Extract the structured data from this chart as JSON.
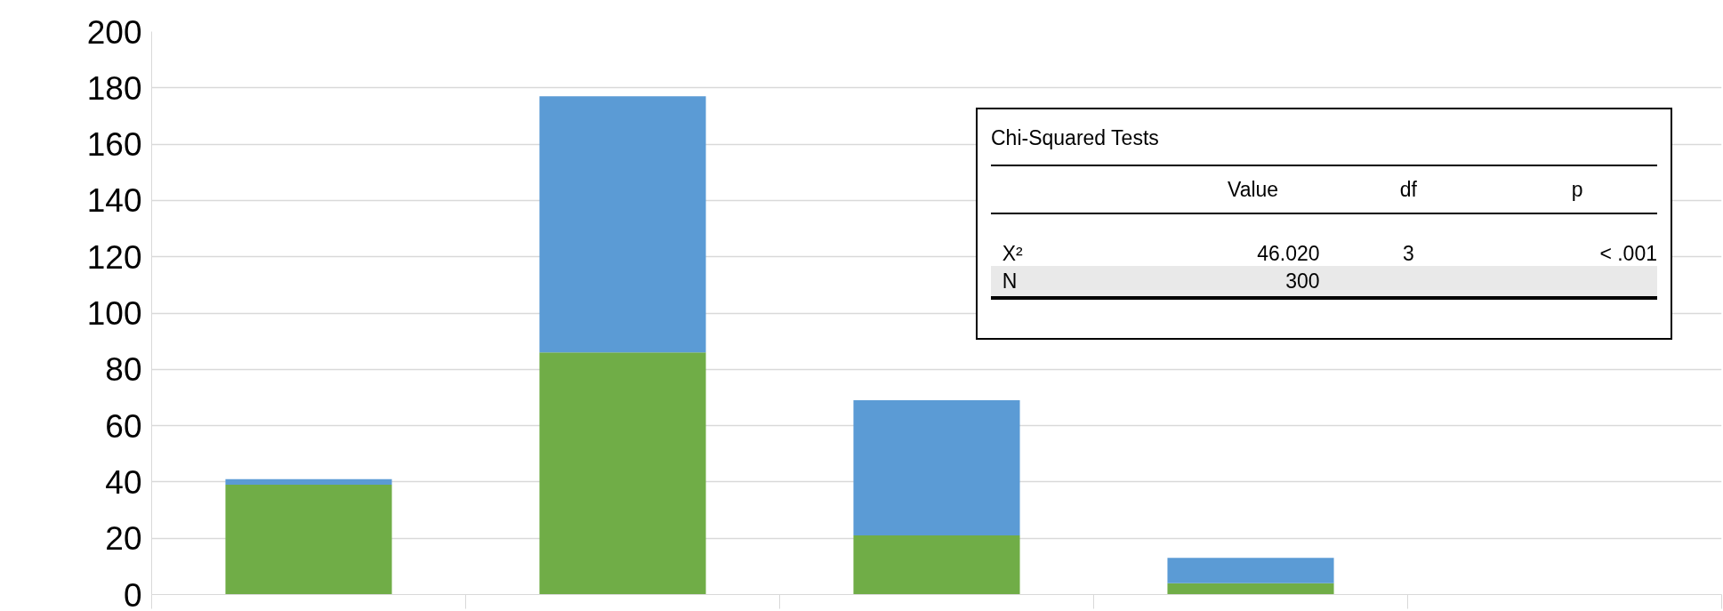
{
  "chart_data": {
    "type": "bar",
    "stacked": true,
    "categories": [
      null,
      null,
      null,
      null,
      null
    ],
    "series": [
      {
        "color": "#70ad47",
        "values": [
          39,
          86,
          21,
          4,
          null
        ]
      },
      {
        "color": "#5b9bd5",
        "values": [
          2,
          91,
          48,
          9,
          null
        ]
      }
    ],
    "ylim": [
      0,
      200
    ],
    "yticks": [
      0,
      20,
      40,
      60,
      80,
      100,
      120,
      140,
      160,
      180,
      200
    ],
    "grid": "y",
    "tick_labels": "y",
    "annotations": [
      "Chi-Squared Tests",
      "Value",
      "df",
      "p",
      "X²",
      "46.020",
      "3",
      "< .001",
      "N",
      "300"
    ]
  }
}
